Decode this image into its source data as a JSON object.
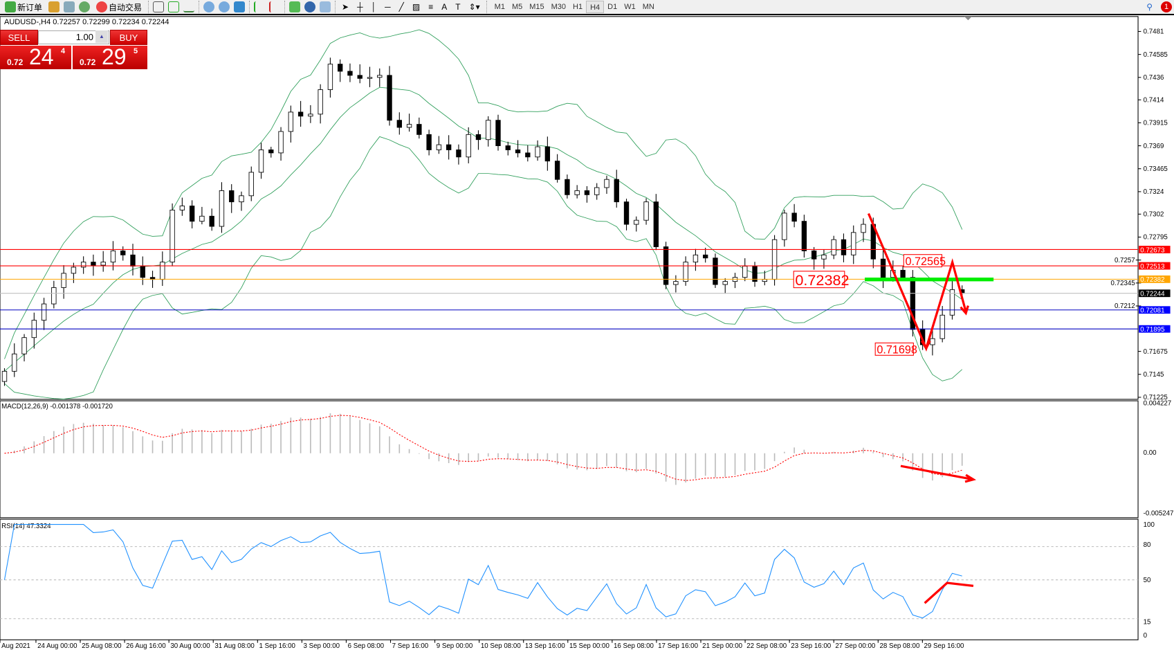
{
  "toolbar": {
    "new_order": "新订单",
    "auto_trading": "自动交易",
    "timeframes": [
      "M1",
      "M5",
      "M15",
      "M30",
      "H1",
      "H4",
      "D1",
      "W1",
      "MN"
    ],
    "active_timeframe": "H4",
    "notification_count": "1"
  },
  "symbol_line": "AUDUSD-,H4  0.72257 0.72299 0.72234 0.72244",
  "trade_panel": {
    "sell": "SELL",
    "buy": "BUY",
    "lot": "1.00",
    "sell_prefix": "0.72",
    "sell_big": "24",
    "sell_sup": "4",
    "buy_prefix": "0.72",
    "buy_big": "29",
    "buy_sup": "5"
  },
  "chart_data": [
    {
      "type": "candlestick",
      "symbol": "AUDUSD-",
      "timeframe": "H4",
      "closes": [
        0.7148,
        0.7165,
        0.7181,
        0.7198,
        0.7214,
        0.723,
        0.7244,
        0.725,
        0.7255,
        0.7252,
        0.7255,
        0.7266,
        0.7262,
        0.7251,
        0.724,
        0.7238,
        0.7255,
        0.7306,
        0.731,
        0.7295,
        0.73,
        0.729,
        0.7325,
        0.7314,
        0.732,
        0.7343,
        0.7365,
        0.7362,
        0.7383,
        0.7402,
        0.7398,
        0.74,
        0.7424,
        0.7449,
        0.7442,
        0.7438,
        0.7435,
        0.7436,
        0.7438,
        0.7394,
        0.7387,
        0.739,
        0.738,
        0.7365,
        0.737,
        0.7365,
        0.7358,
        0.738,
        0.7375,
        0.7394,
        0.7369,
        0.7365,
        0.7362,
        0.7358,
        0.7368,
        0.7354,
        0.7336,
        0.7321,
        0.7325,
        0.7321,
        0.7328,
        0.7336,
        0.7314,
        0.7292,
        0.7296,
        0.7314,
        0.727,
        0.7233,
        0.7236,
        0.7255,
        0.7262,
        0.7259,
        0.7233,
        0.7236,
        0.724,
        0.7251,
        0.7236,
        0.7238,
        0.7277,
        0.7303,
        0.7295,
        0.7266,
        0.7258,
        0.7262,
        0.7277,
        0.7262,
        0.7284,
        0.7292,
        0.7258,
        0.724,
        0.7247,
        0.724,
        0.7189,
        0.7174,
        0.718,
        0.7203,
        0.7228,
        0.72244
      ],
      "price_axis": [
        0.7481,
        0.74585,
        0.7436,
        0.7414,
        0.73915,
        0.7369,
        0.73465,
        0.7324,
        0.7302,
        0.72795,
        0.7257,
        0.72345,
        0.7212,
        0.71675,
        0.7145,
        0.71225
      ],
      "ylim": [
        0.71225,
        0.7495
      ],
      "time_axis": [
        "Aug 2021",
        "24 Aug 00:00",
        "25 Aug 08:00",
        "26 Aug 16:00",
        "30 Aug 00:00",
        "31 Aug 08:00",
        "1 Sep 16:00",
        "3 Sep 00:00",
        "6 Sep 08:00",
        "7 Sep 16:00",
        "9 Sep 00:00",
        "10 Sep 08:00",
        "13 Sep 16:00",
        "15 Sep 00:00",
        "16 Sep 08:00",
        "17 Sep 16:00",
        "21 Sep 00:00",
        "22 Sep 08:00",
        "23 Sep 16:00",
        "27 Sep 00:00",
        "28 Sep 08:00",
        "29 Sep 16:00"
      ],
      "hlines": [
        {
          "value": "0.72673",
          "color": "#ff0000"
        },
        {
          "value": "0.72513",
          "color": "#ff0000"
        },
        {
          "value": "0.72382",
          "color": "#ffa500"
        },
        {
          "value": "0.72244",
          "color": "#c0c0c0",
          "label_bg": "#000000"
        },
        {
          "value": "0.72081",
          "color": "#0000c0",
          "label_bg": "#0000ff"
        },
        {
          "value": "0.71895",
          "color": "#0000c0",
          "label_bg": "#0000ff"
        }
      ],
      "annotations": [
        {
          "text": "0.72382",
          "price": 0.72382
        },
        {
          "text": "0.72565",
          "price": 0.72565
        },
        {
          "text": "0.71698",
          "price": 0.71698
        }
      ],
      "green_level": 0.7238,
      "indicator": "Bollinger Bands",
      "band_color": "#2e9e5a"
    },
    {
      "type": "histogram+line",
      "label": "MACD(12,26,9) -0.001378 -0.001720",
      "axis": [
        "0.004227",
        "0.00",
        "-0.005247"
      ],
      "ylim": [
        -0.005247,
        0.004227
      ],
      "signal_color": "#ff0000"
    },
    {
      "type": "line",
      "label": "RSI(14) 47.3324",
      "axis": [
        "100",
        "80",
        "50",
        "15",
        "0"
      ],
      "levels": [
        80,
        50,
        15
      ],
      "ylim": [
        0,
        100
      ],
      "color": "#1e90ff"
    }
  ]
}
